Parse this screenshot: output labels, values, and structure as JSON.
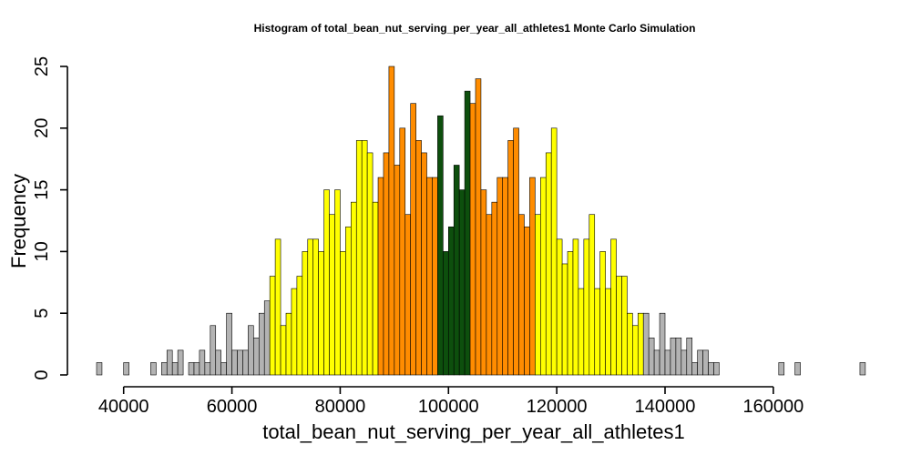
{
  "chart_data": {
    "type": "bar",
    "title": "Histogram of  total_bean_nut_serving_per_year_all_athletes1  Monte Carlo Simulation",
    "xlabel": "total_bean_nut_serving_per_year_all_athletes1",
    "ylabel": "Frequency",
    "xlim": [
      35000,
      175000
    ],
    "ylim": [
      0,
      25
    ],
    "x_ticks": [
      40000,
      60000,
      80000,
      100000,
      120000,
      140000,
      160000
    ],
    "y_ticks": [
      0,
      5,
      10,
      15,
      20,
      25
    ],
    "x_tick_labels": [
      "40000",
      "60000",
      "80000",
      "100000",
      "120000",
      "140000",
      "160000"
    ],
    "y_tick_labels": [
      "0",
      "5",
      "10",
      "15",
      "20",
      "25"
    ],
    "bin_start": 35000,
    "bin_width": 1000,
    "counts": [
      1,
      0,
      0,
      0,
      0,
      1,
      0,
      0,
      0,
      0,
      1,
      0,
      1,
      2,
      1,
      2,
      0,
      1,
      1,
      2,
      1,
      4,
      2,
      1,
      5,
      2,
      2,
      2,
      4,
      3,
      5,
      6,
      8,
      11,
      4,
      5,
      7,
      8,
      10,
      11,
      11,
      10,
      15,
      13,
      15,
      10,
      12,
      14,
      19,
      19,
      18,
      14,
      16,
      18,
      25,
      17,
      20,
      13,
      22,
      19,
      18,
      16,
      16,
      21,
      10,
      12,
      17,
      15,
      23,
      22,
      24,
      15,
      13,
      14,
      16,
      16,
      19,
      20,
      13,
      12,
      16,
      13,
      16,
      18,
      20,
      11,
      9,
      10,
      11,
      7,
      11,
      13,
      7,
      10,
      7,
      11,
      8,
      8,
      5,
      4,
      5,
      5,
      3,
      2,
      5,
      2,
      3,
      3,
      2,
      3,
      1,
      2,
      2,
      1,
      1,
      0,
      0,
      0,
      0,
      0,
      0,
      0,
      0,
      0,
      0,
      0,
      1,
      0,
      0,
      1,
      0,
      0,
      0,
      0,
      0,
      0,
      0,
      0,
      0,
      0,
      0,
      1,
      0
    ],
    "bands": [
      {
        "min": 35000,
        "max": 67000,
        "color": "#b3b3b3"
      },
      {
        "min": 67000,
        "max": 87000,
        "color": "#ffff00"
      },
      {
        "min": 87000,
        "max": 98000,
        "color": "#ff8c00"
      },
      {
        "min": 98000,
        "max": 104000,
        "color": "#0d4f0d"
      },
      {
        "min": 104000,
        "max": 116000,
        "color": "#ff8c00"
      },
      {
        "min": 116000,
        "max": 136000,
        "color": "#ffff00"
      },
      {
        "min": 136000,
        "max": 176000,
        "color": "#b3b3b3"
      }
    ],
    "grid": false,
    "legend": "none"
  }
}
